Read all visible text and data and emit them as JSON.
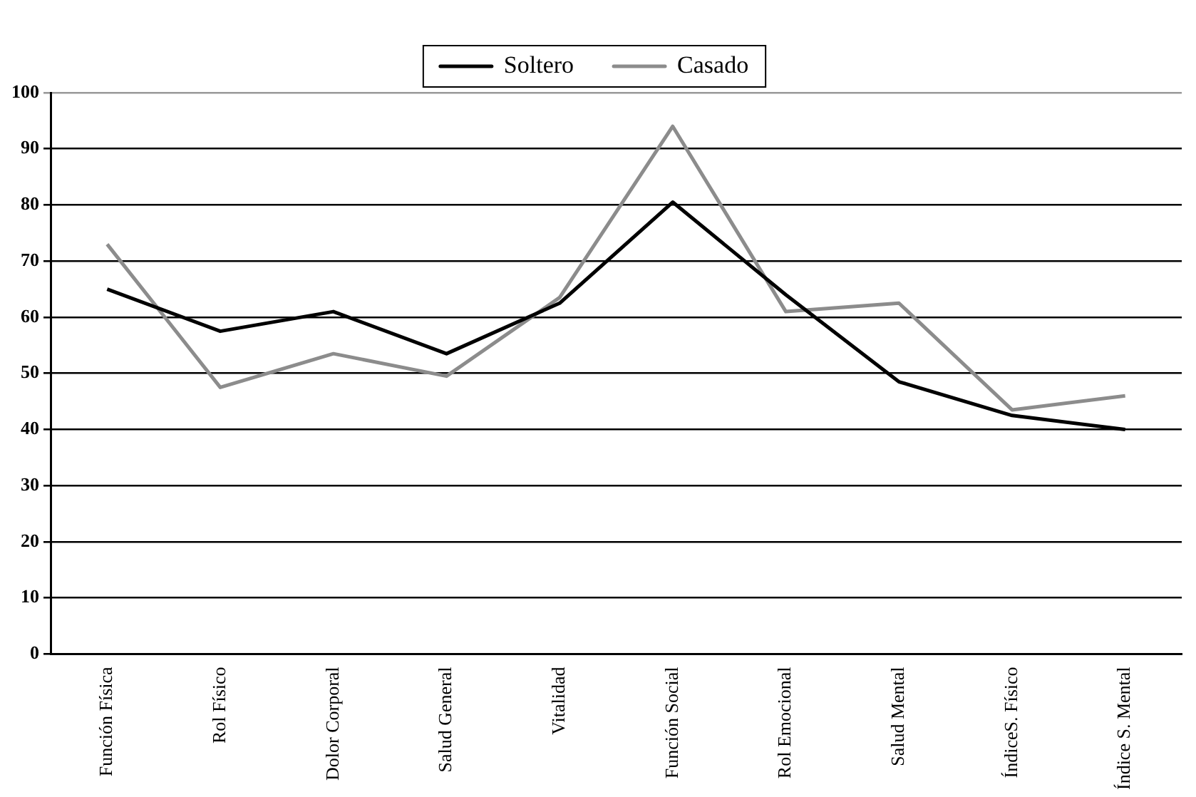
{
  "chart_data": {
    "type": "line",
    "categories": [
      "Función Física",
      "Rol Físico",
      "Dolor Corporal",
      "Salud General",
      "Vitalidad",
      "Función Social",
      "Rol Emocional",
      "Salud Mental",
      "ÍndiceS. Físico",
      "Índice S. Mental"
    ],
    "series": [
      {
        "name": "Soltero",
        "color": "#000000",
        "values": [
          65,
          57.5,
          61,
          53.5,
          62.5,
          80.5,
          64,
          48.5,
          42.5,
          40
        ]
      },
      {
        "name": "Casado",
        "color": "#8c8c8c",
        "values": [
          73,
          47.5,
          53.5,
          49.5,
          63.5,
          94,
          61,
          62.5,
          43.5,
          46
        ]
      }
    ],
    "ylim": [
      0,
      100
    ],
    "yticks": [
      0,
      10,
      20,
      30,
      40,
      50,
      60,
      70,
      80,
      90,
      100
    ],
    "grid": "y",
    "legend": "top",
    "marker": "none",
    "line_style": "solid"
  }
}
